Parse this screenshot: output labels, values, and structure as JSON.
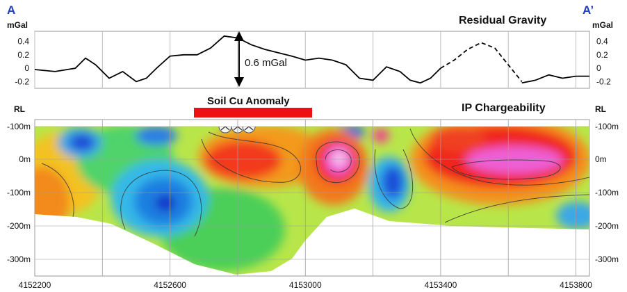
{
  "section": {
    "start_label": "A",
    "end_label": "A’"
  },
  "gravity_panel": {
    "title": "Residual Gravity",
    "unit_left": "mGal",
    "unit_right": "mGal",
    "yticks": [
      "0.4",
      "0.2",
      "0",
      "-0.2"
    ],
    "annotation": "0.6 mGal",
    "line_color": "#000000"
  },
  "ip_panel": {
    "title": "IP Chargeability",
    "rl_left": "RL",
    "rl_right": "RL",
    "depth_ticks": [
      "-100m",
      "0m",
      "-100m",
      "-200m",
      "-300m"
    ],
    "soil_label": "Soil Cu Anomaly",
    "soil_bar_color": "#ee1111"
  },
  "xaxis": {
    "ticks": [
      "4152200",
      "4152600",
      "4153000",
      "4153400",
      "4153800"
    ]
  },
  "chart_data": [
    {
      "type": "line",
      "title": "Residual Gravity",
      "ylabel": "mGal",
      "ylim": [
        -0.3,
        0.55
      ],
      "xlim": [
        4152200,
        4153840
      ],
      "grid": true,
      "series": [
        {
          "x": [
            4152200,
            4152260,
            4152320,
            4152350,
            4152380,
            4152420,
            4152460,
            4152500,
            4152530,
            4152560,
            4152600,
            4152640,
            4152680,
            4152720,
            4152760,
            4152800,
            4152840,
            4152880,
            4152920,
            4152960,
            4153000,
            4153040,
            4153080,
            4153120,
            4153160,
            4153200,
            4153240,
            4153280,
            4153310,
            4153340,
            4153370,
            4153400
          ],
          "y": [
            -0.02,
            -0.05,
            0.0,
            0.15,
            0.05,
            -0.15,
            -0.05,
            -0.2,
            -0.15,
            0.0,
            0.18,
            0.2,
            0.2,
            0.3,
            0.48,
            0.45,
            0.35,
            0.28,
            0.23,
            0.18,
            0.12,
            0.15,
            0.12,
            0.05,
            -0.15,
            -0.18,
            0.02,
            -0.05,
            -0.18,
            -0.22,
            -0.15,
            0.0
          ]
        },
        {
          "style": "dashed",
          "x": [
            4153400,
            4153440,
            4153480,
            4153520,
            4153560,
            4153600,
            4153640
          ],
          "y": [
            0.0,
            0.12,
            0.28,
            0.38,
            0.3,
            0.05,
            -0.2
          ]
        },
        {
          "x": [
            4153640,
            4153680,
            4153720,
            4153760,
            4153800,
            4153840
          ],
          "y": [
            -0.22,
            -0.18,
            -0.1,
            -0.15,
            -0.12,
            -0.12
          ]
        }
      ]
    },
    {
      "type": "heatmap",
      "title": "IP Chargeability",
      "ylabel": "RL",
      "xlim": [
        4152200,
        4153840
      ],
      "ylim": [
        -300,
        100
      ]
    }
  ]
}
